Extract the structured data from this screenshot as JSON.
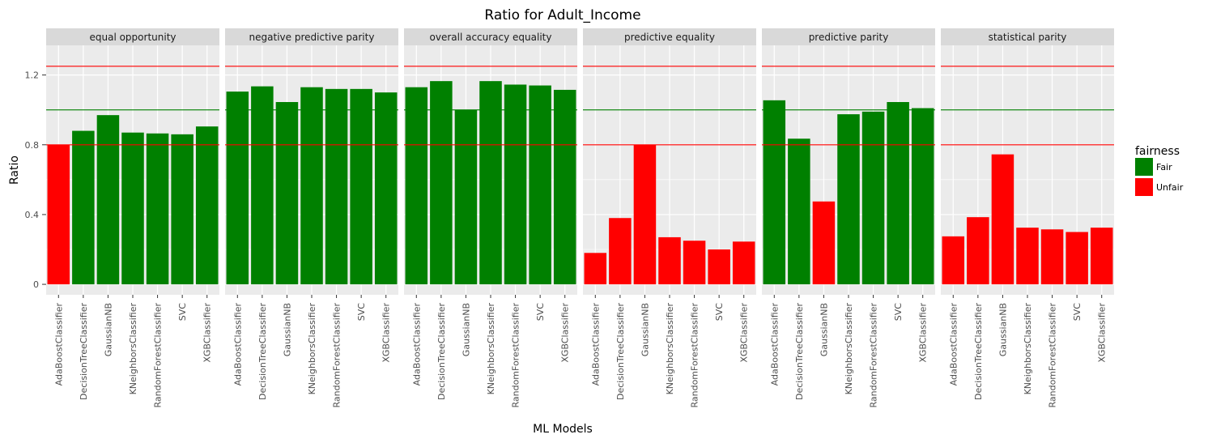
{
  "chart_data": {
    "type": "bar",
    "title": "Ratio for Adult_Income",
    "xlabel": "ML Models",
    "ylabel": "Ratio",
    "ylim": [
      -0.06,
      1.37
    ],
    "yticks": [
      0,
      0.4,
      0.8,
      1.2
    ],
    "ytick_labels": [
      "0",
      "0.4",
      "0.8",
      "1.2"
    ],
    "grid": true,
    "facet_by": "metric",
    "categories": [
      "AdaBoostClassifier",
      "DecisionTreeClassifier",
      "GaussianNB",
      "KNeighborsClassifier",
      "RandomForestClassifier",
      "SVC",
      "XGBClassifier"
    ],
    "reference_lines": [
      {
        "value": 1.25,
        "color": "#ff0000"
      },
      {
        "value": 1.0,
        "color": "#008000"
      },
      {
        "value": 0.8,
        "color": "#ff0000"
      }
    ],
    "legend": {
      "title": "fairness",
      "position": "right",
      "entries": [
        {
          "label": "Fair",
          "color": "#008000"
        },
        {
          "label": "Unfair",
          "color": "#ff0000"
        }
      ]
    },
    "colors": {
      "Fair": "#008000",
      "Unfair": "#ff0000"
    },
    "panels": [
      {
        "name": "equal opportunity",
        "values": [
          0.8,
          0.88,
          0.97,
          0.87,
          0.865,
          0.86,
          0.905
        ],
        "fairness": [
          "Unfair",
          "Fair",
          "Fair",
          "Fair",
          "Fair",
          "Fair",
          "Fair"
        ]
      },
      {
        "name": "negative predictive parity",
        "values": [
          1.105,
          1.135,
          1.045,
          1.13,
          1.12,
          1.12,
          1.1
        ],
        "fairness": [
          "Fair",
          "Fair",
          "Fair",
          "Fair",
          "Fair",
          "Fair",
          "Fair"
        ]
      },
      {
        "name": "overall accuracy equality",
        "values": [
          1.13,
          1.165,
          1.0,
          1.165,
          1.145,
          1.14,
          1.115
        ],
        "fairness": [
          "Fair",
          "Fair",
          "Fair",
          "Fair",
          "Fair",
          "Fair",
          "Fair"
        ]
      },
      {
        "name": "predictive equality",
        "values": [
          0.18,
          0.38,
          0.8,
          0.27,
          0.25,
          0.2,
          0.245
        ],
        "fairness": [
          "Unfair",
          "Unfair",
          "Unfair",
          "Unfair",
          "Unfair",
          "Unfair",
          "Unfair"
        ]
      },
      {
        "name": "predictive parity",
        "values": [
          1.055,
          0.835,
          0.475,
          0.975,
          0.99,
          1.045,
          1.01
        ],
        "fairness": [
          "Fair",
          "Fair",
          "Unfair",
          "Fair",
          "Fair",
          "Fair",
          "Fair"
        ]
      },
      {
        "name": "statistical parity",
        "values": [
          0.275,
          0.385,
          0.745,
          0.325,
          0.315,
          0.3,
          0.325
        ],
        "fairness": [
          "Unfair",
          "Unfair",
          "Unfair",
          "Unfair",
          "Unfair",
          "Unfair",
          "Unfair"
        ]
      }
    ]
  }
}
